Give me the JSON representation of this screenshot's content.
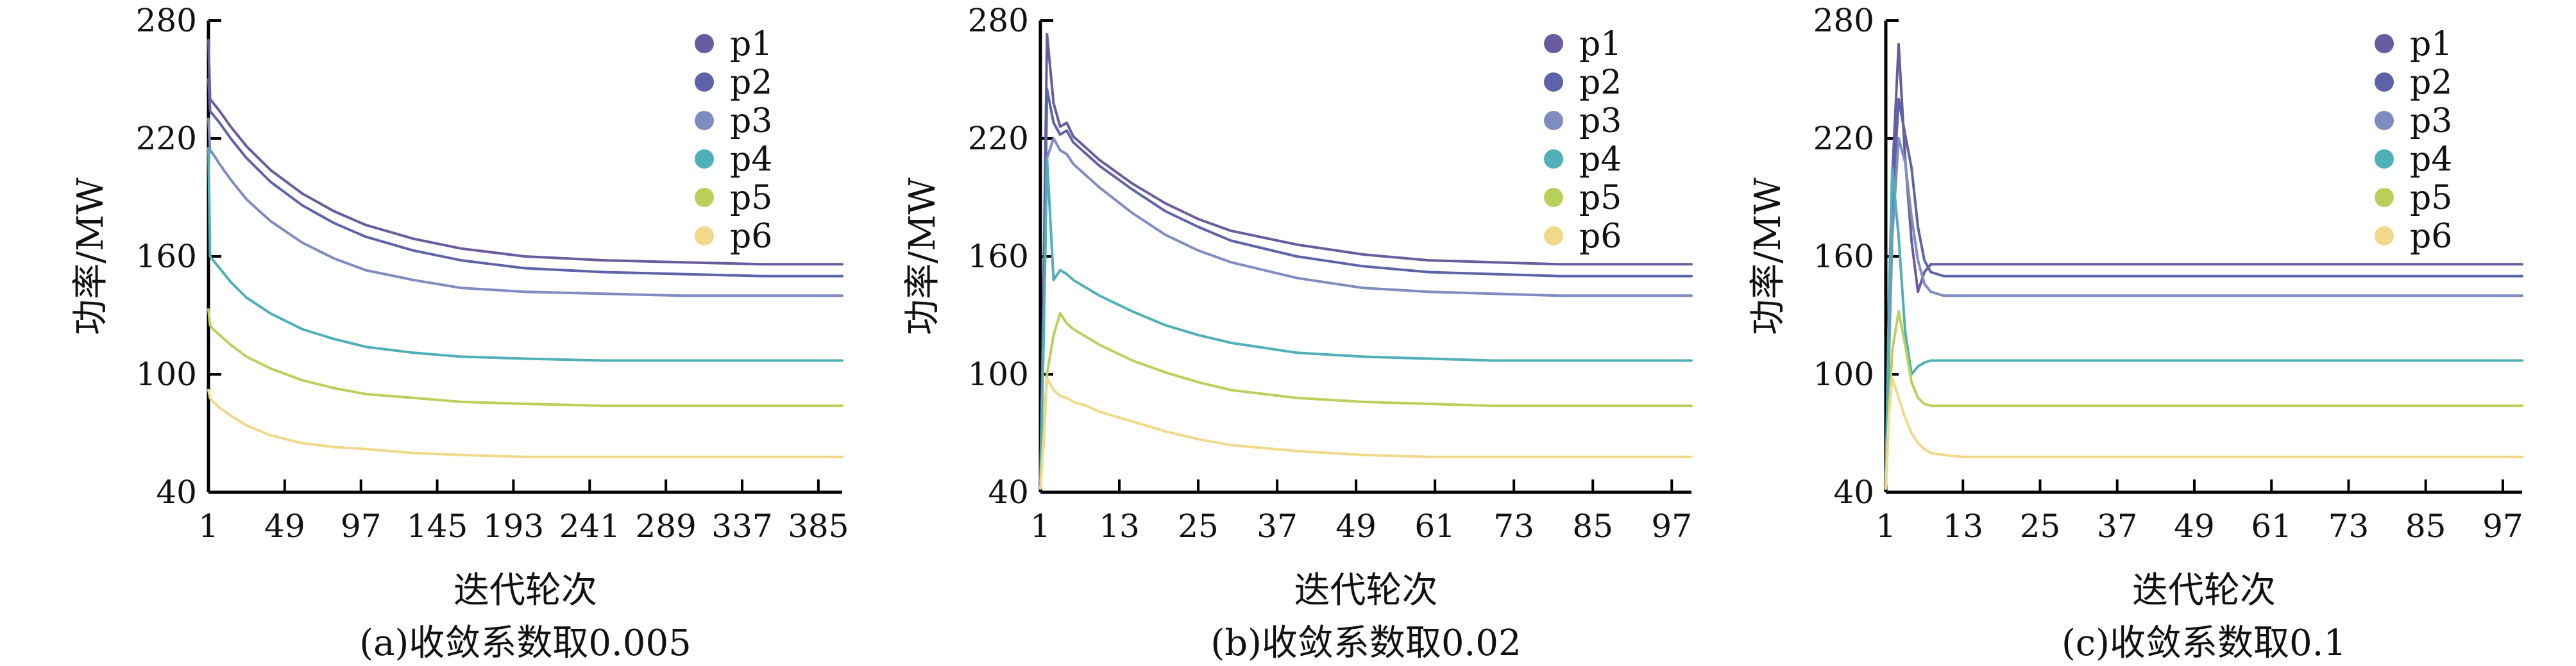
{
  "chart_data": [
    {
      "type": "line",
      "caption": "(a)收敛系数取0.005",
      "xlabel": "迭代轮次",
      "ylabel": "功率/MW",
      "ylim": [
        40,
        280
      ],
      "yticks": [
        40,
        100,
        160,
        220,
        280
      ],
      "xlim": [
        1,
        400
      ],
      "xticks": [
        1,
        49,
        97,
        145,
        193,
        241,
        289,
        337,
        385
      ],
      "legend_position": "top-right",
      "series": [
        {
          "name": "p1",
          "color": "#6a5b9e",
          "x": [
            1,
            2,
            4,
            8,
            15,
            25,
            40,
            60,
            80,
            100,
            130,
            160,
            200,
            250,
            300,
            350,
            400
          ],
          "y": [
            270,
            240,
            238,
            234,
            226,
            216,
            204,
            192,
            183,
            176,
            169,
            164,
            160,
            158,
            157,
            156,
            156
          ]
        },
        {
          "name": "p2",
          "color": "#5c63a8",
          "x": [
            1,
            2,
            4,
            8,
            15,
            25,
            40,
            60,
            80,
            100,
            130,
            160,
            200,
            250,
            300,
            350,
            400
          ],
          "y": [
            250,
            234,
            232,
            228,
            220,
            210,
            198,
            186,
            177,
            170,
            163,
            158,
            154,
            152,
            151,
            150,
            150
          ]
        },
        {
          "name": "p3",
          "color": "#7e8cc2",
          "x": [
            1,
            2,
            4,
            8,
            15,
            25,
            40,
            60,
            80,
            100,
            130,
            160,
            200,
            250,
            300,
            350,
            400
          ],
          "y": [
            230,
            214,
            212,
            207,
            199,
            189,
            178,
            167,
            159,
            153,
            148,
            144,
            142,
            141,
            140,
            140,
            140
          ]
        },
        {
          "name": "p4",
          "color": "#4fb0b8",
          "x": [
            1,
            2,
            4,
            8,
            15,
            25,
            40,
            60,
            80,
            100,
            130,
            160,
            200,
            250,
            300,
            350,
            400
          ],
          "y": [
            215,
            160,
            158,
            154,
            147,
            139,
            131,
            123,
            118,
            114,
            111,
            109,
            108,
            107,
            107,
            107,
            107
          ]
        },
        {
          "name": "p5",
          "color": "#b9d15b",
          "x": [
            1,
            2,
            4,
            8,
            15,
            25,
            40,
            60,
            80,
            100,
            130,
            160,
            200,
            250,
            300,
            350,
            400
          ],
          "y": [
            133,
            125,
            123,
            120,
            115,
            109,
            103,
            97,
            93,
            90,
            88,
            86,
            85,
            84,
            84,
            84,
            84
          ]
        },
        {
          "name": "p6",
          "color": "#f1d98a",
          "x": [
            1,
            2,
            4,
            8,
            15,
            25,
            40,
            60,
            80,
            100,
            130,
            160,
            200,
            250,
            300,
            350,
            400
          ],
          "y": [
            92,
            88,
            86,
            83,
            79,
            74,
            69,
            65,
            63,
            62,
            60,
            59,
            58,
            58,
            58,
            58,
            58
          ]
        }
      ]
    },
    {
      "type": "line",
      "caption": "(b)收敛系数取0.02",
      "xlabel": "迭代轮次",
      "ylabel": "功率/MW",
      "ylim": [
        40,
        280
      ],
      "yticks": [
        40,
        100,
        160,
        220,
        280
      ],
      "xlim": [
        1,
        100
      ],
      "xticks": [
        1,
        13,
        25,
        37,
        49,
        61,
        73,
        85,
        97
      ],
      "legend_position": "top-right",
      "series": [
        {
          "name": "p1",
          "color": "#6a5b9e",
          "x": [
            1,
            1.5,
            2,
            3,
            4,
            5,
            6,
            8,
            10,
            15,
            20,
            25,
            30,
            40,
            50,
            60,
            70,
            80,
            90,
            100
          ],
          "y": [
            45,
            150,
            273,
            238,
            226,
            228,
            221,
            215,
            209,
            197,
            187,
            179,
            173,
            166,
            161,
            158,
            157,
            156,
            156,
            156
          ]
        },
        {
          "name": "p2",
          "color": "#5c63a8",
          "x": [
            1,
            1.5,
            2,
            3,
            4,
            5,
            6,
            8,
            10,
            15,
            20,
            25,
            30,
            40,
            50,
            60,
            70,
            80,
            90,
            100
          ],
          "y": [
            45,
            130,
            245,
            228,
            222,
            224,
            218,
            212,
            206,
            194,
            183,
            175,
            168,
            160,
            155,
            152,
            151,
            150,
            150,
            150
          ]
        },
        {
          "name": "p3",
          "color": "#7e8cc2",
          "x": [
            1,
            1.5,
            2,
            3,
            4,
            5,
            6,
            8,
            10,
            15,
            20,
            25,
            30,
            40,
            50,
            60,
            70,
            80,
            90,
            100
          ],
          "y": [
            45,
            120,
            210,
            220,
            214,
            212,
            207,
            201,
            195,
            182,
            171,
            163,
            157,
            149,
            144,
            142,
            141,
            140,
            140,
            140
          ]
        },
        {
          "name": "p4",
          "color": "#4fb0b8",
          "x": [
            1,
            1.5,
            2,
            3,
            4,
            5,
            6,
            8,
            10,
            15,
            20,
            25,
            30,
            40,
            50,
            60,
            70,
            80,
            90,
            100
          ],
          "y": [
            45,
            120,
            210,
            148,
            153,
            151,
            148,
            144,
            140,
            132,
            125,
            120,
            116,
            111,
            109,
            108,
            107,
            107,
            107,
            107
          ]
        },
        {
          "name": "p5",
          "color": "#b9d15b",
          "x": [
            1,
            1.5,
            2,
            3,
            4,
            5,
            6,
            8,
            10,
            15,
            20,
            25,
            30,
            40,
            50,
            60,
            70,
            80,
            90,
            100
          ],
          "y": [
            42,
            70,
            100,
            120,
            131,
            126,
            123,
            119,
            115,
            107,
            101,
            96,
            92,
            88,
            86,
            85,
            84,
            84,
            84,
            84
          ]
        },
        {
          "name": "p6",
          "color": "#f1d98a",
          "x": [
            1,
            1.5,
            2,
            3,
            4,
            5,
            6,
            8,
            10,
            15,
            20,
            25,
            30,
            40,
            50,
            60,
            70,
            80,
            90,
            100
          ],
          "y": [
            42,
            65,
            98,
            92,
            89,
            88,
            86,
            84,
            81,
            76,
            71,
            67,
            64,
            61,
            59,
            58,
            58,
            58,
            58,
            58
          ]
        }
      ]
    },
    {
      "type": "line",
      "caption": "(c)收敛系数取0.1",
      "xlabel": "迭代轮次",
      "ylabel": "功率/MW",
      "ylim": [
        40,
        280
      ],
      "yticks": [
        40,
        100,
        160,
        220,
        280
      ],
      "xlim": [
        1,
        100
      ],
      "xticks": [
        1,
        13,
        25,
        37,
        49,
        61,
        73,
        85,
        97
      ],
      "legend_position": "top-right",
      "series": [
        {
          "name": "p1",
          "color": "#6a5b9e",
          "x": [
            1,
            1.5,
            2,
            3,
            4,
            5,
            6,
            7,
            8,
            10,
            13,
            20,
            40,
            60,
            80,
            100
          ],
          "y": [
            45,
            130,
            200,
            268,
            210,
            168,
            142,
            152,
            156,
            156,
            156,
            156,
            156,
            156,
            156,
            156
          ]
        },
        {
          "name": "p2",
          "color": "#5c63a8",
          "x": [
            1,
            1.5,
            2,
            3,
            4,
            5,
            6,
            7,
            8,
            10,
            13,
            20,
            40,
            60,
            80,
            100
          ],
          "y": [
            45,
            120,
            185,
            240,
            222,
            205,
            175,
            158,
            152,
            150,
            150,
            150,
            150,
            150,
            150,
            150
          ]
        },
        {
          "name": "p3",
          "color": "#7e8cc2",
          "x": [
            1,
            1.5,
            2,
            3,
            4,
            5,
            6,
            7,
            8,
            10,
            13,
            20,
            40,
            60,
            80,
            100
          ],
          "y": [
            45,
            110,
            170,
            220,
            208,
            180,
            158,
            146,
            142,
            140,
            140,
            140,
            140,
            140,
            140,
            140
          ]
        },
        {
          "name": "p4",
          "color": "#4fb0b8",
          "x": [
            1,
            1.5,
            2,
            3,
            4,
            5,
            6,
            7,
            8,
            10,
            13,
            20,
            40,
            60,
            80,
            100
          ],
          "y": [
            45,
            140,
            205,
            170,
            122,
            100,
            104,
            106,
            107,
            107,
            107,
            107,
            107,
            107,
            107,
            107
          ]
        },
        {
          "name": "p5",
          "color": "#b9d15b",
          "x": [
            1,
            1.5,
            2,
            3,
            4,
            5,
            6,
            7,
            8,
            10,
            13,
            20,
            40,
            60,
            80,
            100
          ],
          "y": [
            42,
            80,
            112,
            132,
            115,
            96,
            88,
            85,
            84,
            84,
            84,
            84,
            84,
            84,
            84,
            84
          ]
        },
        {
          "name": "p6",
          "color": "#f1d98a",
          "x": [
            1,
            1.5,
            2,
            3,
            4,
            5,
            6,
            7,
            8,
            10,
            13,
            20,
            40,
            60,
            80,
            100
          ],
          "y": [
            42,
            80,
            98,
            88,
            78,
            70,
            65,
            62,
            60,
            59,
            58,
            58,
            58,
            58,
            58,
            58
          ]
        }
      ]
    }
  ]
}
